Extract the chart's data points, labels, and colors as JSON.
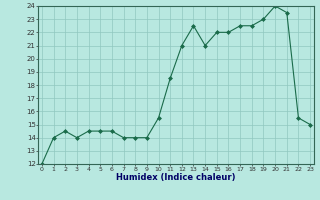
{
  "x": [
    0,
    1,
    2,
    3,
    4,
    5,
    6,
    7,
    8,
    9,
    10,
    11,
    12,
    13,
    14,
    15,
    16,
    17,
    18,
    19,
    20,
    21,
    22,
    23
  ],
  "y": [
    12,
    14,
    14.5,
    14,
    14.5,
    14.5,
    14.5,
    14,
    14,
    14,
    15.5,
    18.5,
    21,
    22.5,
    21,
    22,
    22,
    22.5,
    22.5,
    23,
    24,
    23.5,
    15.5,
    15
  ],
  "ylim_min": 12,
  "ylim_max": 24,
  "yticks": [
    12,
    13,
    14,
    15,
    16,
    17,
    18,
    19,
    20,
    21,
    22,
    23,
    24
  ],
  "xticks": [
    0,
    1,
    2,
    3,
    4,
    5,
    6,
    7,
    8,
    9,
    10,
    11,
    12,
    13,
    14,
    15,
    16,
    17,
    18,
    19,
    20,
    21,
    22,
    23
  ],
  "xlabel": "Humidex (Indice chaleur)",
  "line_color": "#1a6b4a",
  "marker": "D",
  "marker_size": 2.0,
  "bg_color": "#b8e8e0",
  "grid_color": "#90c8c0",
  "spine_color": "#336655"
}
